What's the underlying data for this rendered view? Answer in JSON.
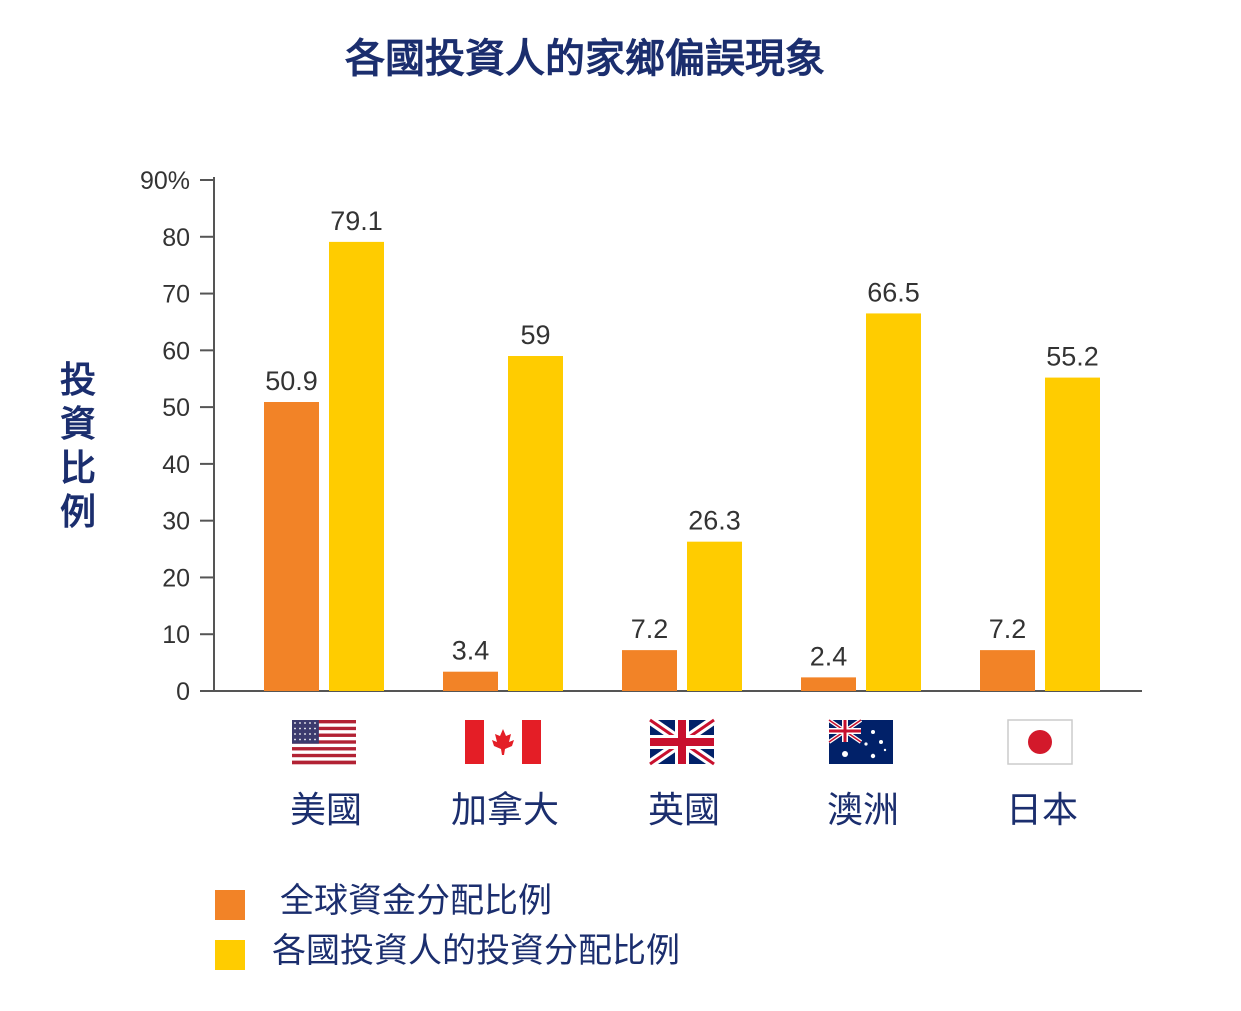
{
  "chart_data": {
    "type": "bar",
    "title": "各國投資人的家鄉偏誤現象",
    "ylabel": "投資比例",
    "ylim": [
      0,
      90
    ],
    "y_ticks": [
      "0",
      "10",
      "20",
      "30",
      "40",
      "50",
      "60",
      "70",
      "80",
      "90%"
    ],
    "categories": [
      "美國",
      "加拿大",
      "英國",
      "澳洲",
      "日本"
    ],
    "flags": [
      "us-flag-icon",
      "canada-flag-icon",
      "uk-flag-icon",
      "australia-flag-icon",
      "japan-flag-icon"
    ],
    "series": [
      {
        "name": "全球資金分配比例",
        "color": "#f28327",
        "values": [
          50.9,
          3.4,
          7.2,
          2.4,
          7.2
        ],
        "labels": [
          "50.9",
          "3.4",
          "7.2",
          "2.4",
          "7.2"
        ]
      },
      {
        "name": "各國投資人的投資分配比例",
        "color": "#ffcc00",
        "values": [
          79.1,
          59,
          26.3,
          66.5,
          55.2
        ],
        "labels": [
          "79.1",
          "59",
          "26.3",
          "66.5",
          "55.2"
        ]
      }
    ],
    "grid": false,
    "legend_position": "bottom-left"
  }
}
